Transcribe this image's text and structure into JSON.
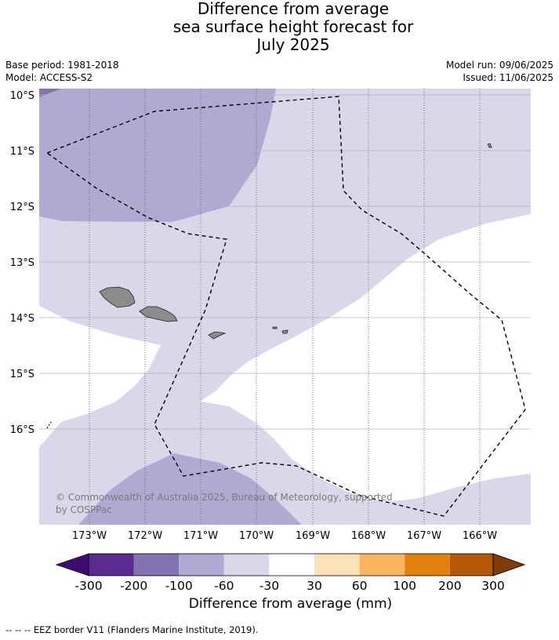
{
  "header": {
    "title_line1": "Difference from average",
    "title_line2": "sea surface height forecast for",
    "title_line3": "July 2025",
    "base_period": "Base period: 1981-2018",
    "model": "Model: ACCESS-S2",
    "model_run": "Model run: 09/06/2025",
    "issued": "Issued: 11/06/2025"
  },
  "map": {
    "lat_labels": [
      "10°S",
      "11°S",
      "12°S",
      "13°S",
      "14°S",
      "15°S",
      "16°S"
    ],
    "lon_labels": [
      "173°W",
      "172°W",
      "171°W",
      "170°W",
      "169°W",
      "168°W",
      "167°W",
      "166°W"
    ],
    "copyright_line1": "© Commonwealth of Australia 2025, Bureau of Meteorology, supported",
    "copyright_line2": "by COSPPac",
    "colors": {
      "land": "#8c8c8c",
      "band_neg100_neg60": "#b0aad3",
      "band_neg60_neg30": "#d8d8ea",
      "band_neg30_30": "#ffffff"
    }
  },
  "colorbar": {
    "tick_labels": [
      "-300",
      "-200",
      "-100",
      "-60",
      "-30",
      "30",
      "60",
      "100",
      "200",
      "300"
    ],
    "colors": [
      "#3f0c70",
      "#5b2a91",
      "#8273b0",
      "#b0aad3",
      "#d8d8ea",
      "#ffffff",
      "#fde1b8",
      "#fbb560",
      "#e3810f",
      "#b45708",
      "#7f3b08"
    ],
    "title": "Difference from average (mm)"
  },
  "footer": {
    "legend_text": "--  --  -- EEZ border V11 (Flanders Marine Institute, 2019)."
  }
}
